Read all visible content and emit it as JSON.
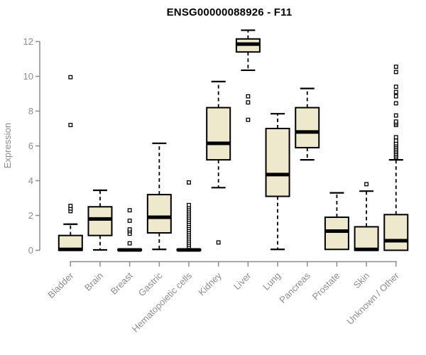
{
  "chart_data": {
    "type": "boxplot",
    "title": "ENSG00000088926 - F11",
    "xlabel": "",
    "ylabel": "Expression",
    "ylim": [
      0,
      13
    ],
    "yticks": [
      0,
      2,
      4,
      6,
      8,
      10,
      12
    ],
    "grid": "off",
    "legend": "none",
    "colors": {
      "box_fill": "#EEE8CD",
      "box_stroke": "#000000",
      "median": "#000000",
      "whisker": "#000000",
      "outlier_stroke": "#000000",
      "outlier_fill": "#ffffff",
      "axis": "#8c8c8c",
      "label_text": "#8c8c8c",
      "title_text": "#000000",
      "background": "#ffffff"
    },
    "categories": [
      "Bladder",
      "Brain",
      "Breast",
      "Gastric",
      "Hematopoietic cells",
      "Kidney",
      "Liver",
      "Lung",
      "Pancreas",
      "Prostate",
      "Skin",
      "Unknown / Other"
    ],
    "series": [
      {
        "label": "Bladder",
        "whisker_low": 0,
        "q1": 0,
        "median": 0.05,
        "q3": 0.85,
        "whisker_high": 1.5,
        "outliers": [
          2.25,
          2.4,
          2.55,
          7.2,
          9.95
        ]
      },
      {
        "label": "Brain",
        "whisker_low": 0.02,
        "q1": 0.85,
        "median": 1.8,
        "q3": 2.5,
        "whisker_high": 3.45,
        "outliers": []
      },
      {
        "label": "Breast",
        "whisker_low": 0,
        "q1": 0,
        "median": 0.02,
        "q3": 0.05,
        "whisker_high": 0.05,
        "outliers": [
          0.4,
          0.95,
          1.1,
          1.2,
          1.7,
          2.3
        ]
      },
      {
        "label": "Gastric",
        "whisker_low": 0.05,
        "q1": 1.0,
        "median": 1.9,
        "q3": 3.2,
        "whisker_high": 6.15,
        "outliers": []
      },
      {
        "label": "Hematopoietic cells",
        "whisker_low": 0,
        "q1": 0,
        "median": 0.02,
        "q3": 0.05,
        "whisker_high": 0.05,
        "outliers": [
          0.2,
          0.32,
          0.44,
          0.56,
          0.68,
          0.8,
          0.92,
          1.04,
          1.16,
          1.28,
          1.4,
          1.52,
          1.64,
          1.76,
          1.88,
          2.0,
          2.12,
          2.24,
          2.36,
          2.48,
          2.6,
          3.9
        ]
      },
      {
        "label": "Kidney",
        "whisker_low": 3.6,
        "q1": 5.2,
        "median": 6.15,
        "q3": 8.2,
        "whisker_high": 9.7,
        "outliers": [
          0.45
        ]
      },
      {
        "label": "Liver",
        "whisker_low": 10.35,
        "q1": 11.4,
        "median": 11.85,
        "q3": 12.15,
        "whisker_high": 12.65,
        "outliers": [
          8.85,
          8.5,
          7.5
        ]
      },
      {
        "label": "Lung",
        "whisker_low": 0.05,
        "q1": 3.1,
        "median": 4.35,
        "q3": 7.0,
        "whisker_high": 7.85,
        "outliers": []
      },
      {
        "label": "Pancreas",
        "whisker_low": 5.2,
        "q1": 5.9,
        "median": 6.8,
        "q3": 8.2,
        "whisker_high": 9.3,
        "outliers": []
      },
      {
        "label": "Prostate",
        "whisker_low": 0.05,
        "q1": 0.05,
        "median": 1.1,
        "q3": 1.9,
        "whisker_high": 3.3,
        "outliers": []
      },
      {
        "label": "Skin",
        "whisker_low": 0,
        "q1": 0,
        "median": 0.05,
        "q3": 1.35,
        "whisker_high": 3.4,
        "outliers": [
          3.8
        ]
      },
      {
        "label": "Unknown / Other",
        "whisker_low": 0,
        "q1": 0,
        "median": 0.55,
        "q3": 2.05,
        "whisker_high": 5.2,
        "outliers": [
          5.35,
          5.45,
          5.55,
          5.65,
          5.75,
          5.85,
          5.95,
          6.05,
          6.15,
          6.3,
          6.5,
          7.2,
          7.3,
          7.4,
          7.75,
          8.45,
          8.85,
          9.1,
          9.4,
          10.25,
          10.55
        ]
      }
    ]
  }
}
